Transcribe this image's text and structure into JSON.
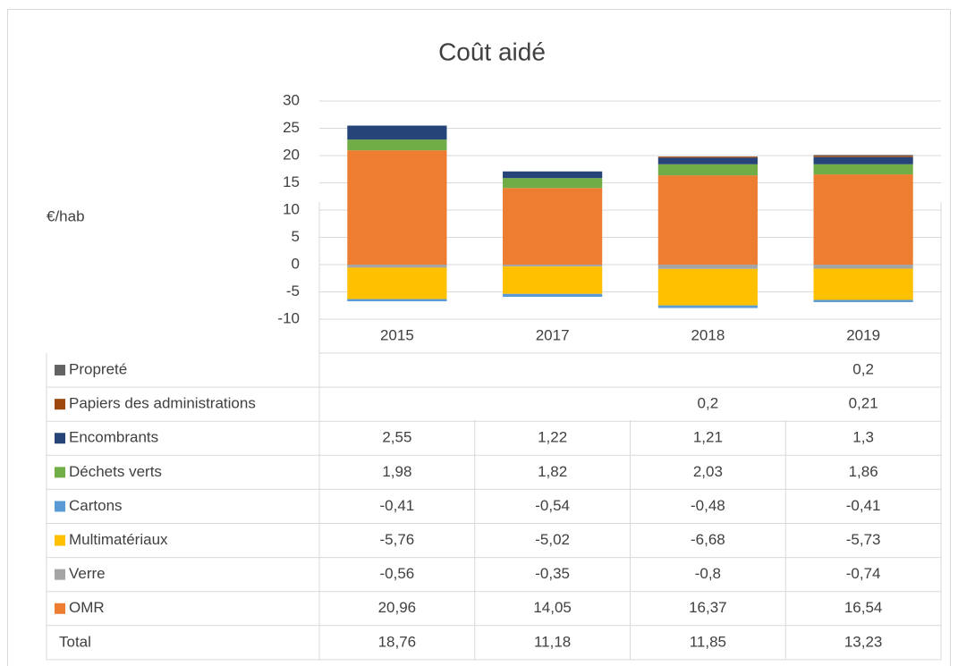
{
  "chart_data": {
    "type": "bar",
    "stacked": true,
    "title": "Coût aidé",
    "y_label": "€/hab",
    "categories": [
      "2015",
      "2017",
      "2018",
      "2019"
    ],
    "ylim": [
      -10,
      30
    ],
    "yticks": [
      -10,
      -5,
      0,
      5,
      10,
      15,
      20,
      25,
      30
    ],
    "grid": true,
    "series": [
      {
        "name": "Propreté",
        "color": "#636363",
        "values": [
          null,
          null,
          null,
          0.2
        ],
        "value_labels": [
          null,
          null,
          null,
          "0,2"
        ]
      },
      {
        "name": "Papiers des administrations",
        "color": "#9e480e",
        "values": [
          null,
          null,
          0.2,
          0.21
        ],
        "value_labels": [
          null,
          null,
          "0,2",
          "0,21"
        ]
      },
      {
        "name": "Encombrants",
        "color": "#264478",
        "values": [
          2.55,
          1.22,
          1.21,
          1.3
        ],
        "value_labels": [
          "2,55",
          "1,22",
          "1,21",
          "1,3"
        ]
      },
      {
        "name": "Déchets verts",
        "color": "#70ad47",
        "values": [
          1.98,
          1.82,
          2.03,
          1.86
        ],
        "value_labels": [
          "1,98",
          "1,82",
          "2,03",
          "1,86"
        ]
      },
      {
        "name": "Cartons",
        "color": "#5b9bd5",
        "values": [
          -0.41,
          -0.54,
          -0.48,
          -0.41
        ],
        "value_labels": [
          "-0,41",
          "-0,54",
          "-0,48",
          "-0,41"
        ]
      },
      {
        "name": "Multimatériaux",
        "color": "#ffc000",
        "values": [
          -5.76,
          -5.02,
          -6.68,
          -5.73
        ],
        "value_labels": [
          "-5,76",
          "-5,02",
          "-6,68",
          "-5,73"
        ]
      },
      {
        "name": "Verre",
        "color": "#a5a5a5",
        "values": [
          -0.56,
          -0.35,
          -0.8,
          -0.74
        ],
        "value_labels": [
          "-0,56",
          "-0,35",
          "-0,8",
          "-0,74"
        ]
      },
      {
        "name": "OMR",
        "color": "#ed7d31",
        "values": [
          20.96,
          14.05,
          16.37,
          16.54
        ],
        "value_labels": [
          "20,96",
          "14,05",
          "16,37",
          "16,54"
        ]
      }
    ],
    "total": {
      "name": "Total",
      "values": [
        18.76,
        11.18,
        11.85,
        13.23
      ],
      "value_labels": [
        "18,76",
        "11,18",
        "11,85",
        "13,23"
      ]
    }
  }
}
